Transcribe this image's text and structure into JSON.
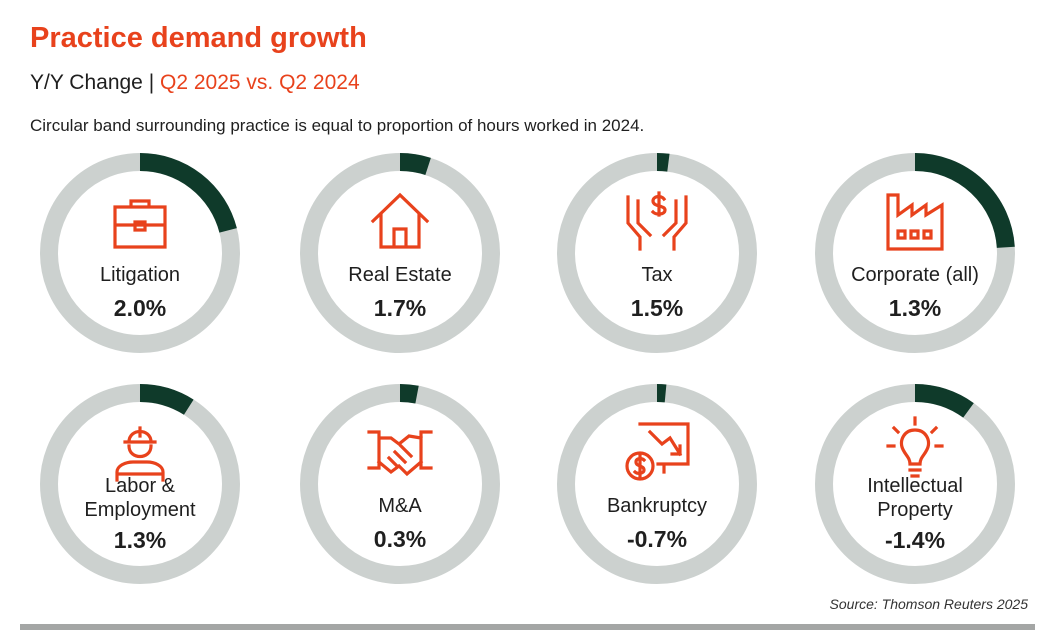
{
  "header": {
    "title": "Practice demand growth",
    "subtitle_prefix": "Y/Y Change |",
    "subtitle_period": "Q2 2025 vs. Q2 2024",
    "note": "Circular band surrounding practice is equal to proportion of hours worked in 2024."
  },
  "footer": {
    "source": "Source: Thomson Reuters 2025"
  },
  "colors": {
    "accent": "#e8421c",
    "ring_track": "#ccd1cf",
    "ring_band": "#0f3a2a"
  },
  "chart_data": {
    "type": "radial",
    "title": "Practice demand growth",
    "subtitle": "Y/Y Change | Q2 2025 vs. Q2 2024",
    "series": [
      {
        "name": "Y/Y demand growth (%)"
      },
      {
        "name": "Proportion of hours worked in 2024 (fraction of circle)"
      }
    ],
    "practices": [
      {
        "id": "litigation",
        "label": "Litigation",
        "value_label": "2.0%",
        "growth": 2.0,
        "share": 0.21,
        "icon": "briefcase-icon"
      },
      {
        "id": "real-estate",
        "label": "Real Estate",
        "value_label": "1.7%",
        "growth": 1.7,
        "share": 0.05,
        "icon": "house-icon"
      },
      {
        "id": "tax",
        "label": "Tax",
        "value_label": "1.5%",
        "growth": 1.5,
        "share": 0.02,
        "icon": "hands-dollar-icon"
      },
      {
        "id": "corporate",
        "label": "Corporate (all)",
        "value_label": "1.3%",
        "growth": 1.3,
        "share": 0.24,
        "icon": "factory-icon"
      },
      {
        "id": "labor",
        "label": "Labor & Employment",
        "value_label": "1.3%",
        "growth": 1.3,
        "share": 0.09,
        "icon": "worker-icon"
      },
      {
        "id": "ma",
        "label": "M&A",
        "value_label": "0.3%",
        "growth": 0.3,
        "share": 0.03,
        "icon": "handshake-icon"
      },
      {
        "id": "bankruptcy",
        "label": "Bankruptcy",
        "value_label": "-0.7%",
        "growth": -0.7,
        "share": 0.015,
        "icon": "declining-chart-dollar-icon"
      },
      {
        "id": "ip",
        "label": "Intellectual Property",
        "value_label": "-1.4%",
        "growth": -1.4,
        "share": 0.1,
        "icon": "lightbulb-icon"
      }
    ]
  }
}
